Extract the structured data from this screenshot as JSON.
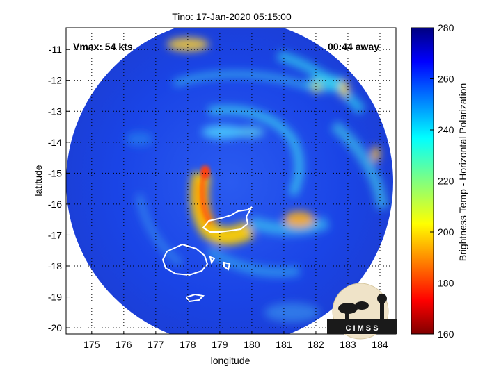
{
  "figure": {
    "title": "Tino: 17-Jan-2020 05:15:00",
    "xlabel": "longitude",
    "ylabel": "latitude",
    "vmax_text": "Vmax: 54 kts",
    "time_away_text": "00:44 away",
    "logo_text": "C I M S S"
  },
  "axes": {
    "xlim": [
      174.2,
      184.5
    ],
    "ylim": [
      -20.2,
      -10.3
    ],
    "xticks": [
      "175",
      "176",
      "177",
      "178",
      "179",
      "180",
      "181",
      "182",
      "183",
      "184"
    ],
    "yticks": [
      "-11",
      "-12",
      "-13",
      "-14",
      "-15",
      "-16",
      "-17",
      "-18",
      "-19",
      "-20"
    ],
    "grid": "dotted"
  },
  "colorbar": {
    "label": "Brightness Temp - Horizontal Polarization",
    "ticks": [
      "280",
      "260",
      "240",
      "220",
      "200",
      "180",
      "160"
    ],
    "range": [
      160,
      280
    ],
    "colormap": "jet"
  },
  "colors": {
    "background_disk": "#1a3fe0",
    "coastline": "#ffffff"
  }
}
